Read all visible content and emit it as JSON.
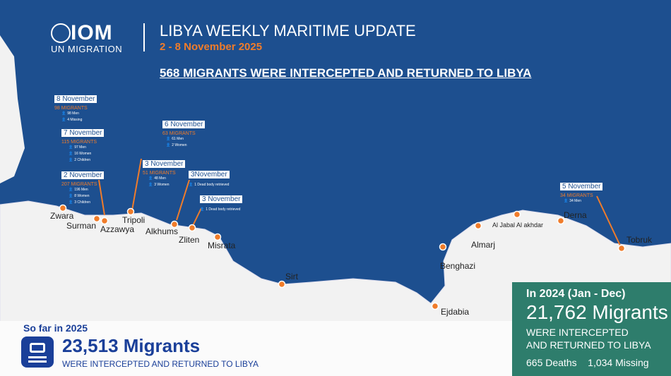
{
  "header": {
    "logo": "IOM",
    "logo_sub": "UN MIGRATION",
    "title": "LIBYA WEEKLY MARITIME UPDATE",
    "date_range": "2 - 8 November 2025",
    "headline": "568 MIGRANTS WERE INTERCEPTED AND RETURNED TO LIBYA"
  },
  "events": [
    {
      "date": "8 November",
      "migrants": "98 MIGRANTS",
      "people": [
        "98 Men",
        "4 Missing"
      ]
    },
    {
      "date": "7 November",
      "migrants": "115 MIGRANTS",
      "people": [
        "97 Men",
        "16 Women",
        "2 Children"
      ]
    },
    {
      "date": "2 November",
      "migrants": "207 MIGRANTS",
      "people": [
        "196 Men",
        "8 Women",
        "3 Children"
      ]
    },
    {
      "date": "6 November",
      "migrants": "63 MIGRANTS",
      "people": [
        "61 Men",
        "2 Women"
      ]
    },
    {
      "date": "3 November",
      "migrants": "51 MIGRANTS",
      "people": [
        "48 Men",
        "3 Women"
      ]
    },
    {
      "date": "3November",
      "migrants": "",
      "people": [
        "1 Dead body retrieved"
      ]
    },
    {
      "date": "3 November",
      "migrants": "",
      "people": [
        "1 Dead body retrieved"
      ]
    },
    {
      "date": "5 November",
      "migrants": "34 MIGRANTS",
      "people": [
        "34 Men"
      ]
    }
  ],
  "cities": [
    "Zwara",
    "Surman",
    "Azzawya",
    "Tripoli",
    "Alkhums",
    "Zliten",
    "Misrata",
    "Sirt",
    "Benghazi",
    "Almarj",
    "Al Jabal Al akhdar",
    "Derna",
    "Tobruk",
    "Ejdabia"
  ],
  "summary_2025": {
    "label": "So far in 2025",
    "count": "23,513 Migrants",
    "text": "WERE INTERCEPTED AND RETURNED TO LIBYA"
  },
  "summary_2024": {
    "label": "In 2024 (Jan - Dec)",
    "count": "21,762 Migrants",
    "text1": "WERE INTERCEPTED",
    "text2": "AND RETURNED TO LIBYA",
    "deaths": "665 Deaths",
    "missing": "1,034 Missing"
  },
  "colors": {
    "sea": "#1d4f8f",
    "accent": "#f07c2a",
    "box": "#2e7d6c"
  }
}
